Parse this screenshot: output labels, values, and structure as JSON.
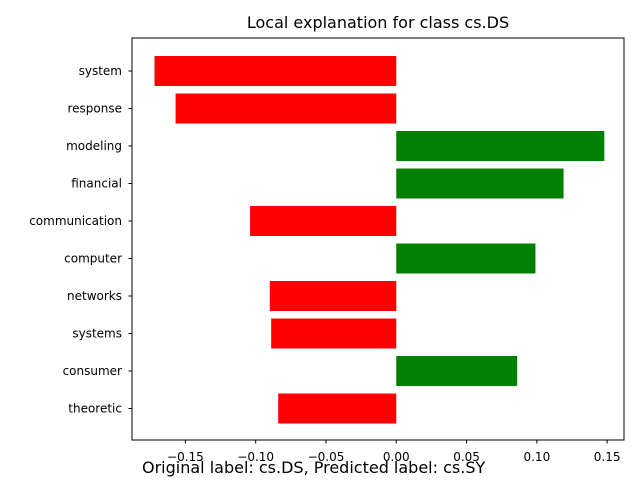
{
  "chart_data": {
    "type": "bar",
    "orientation": "horizontal",
    "title": "Local explanation for class cs.DS",
    "xlabel": "",
    "ylabel": "",
    "categories": [
      "system",
      "response",
      "modeling",
      "financial",
      "communication",
      "computer",
      "networks",
      "systems",
      "consumer",
      "theoretic"
    ],
    "values": [
      -0.172,
      -0.157,
      0.148,
      0.119,
      -0.104,
      0.099,
      -0.09,
      -0.089,
      0.086,
      -0.084
    ],
    "xlim": [
      -0.188,
      0.162
    ],
    "xticks": [
      -0.15,
      -0.1,
      -0.05,
      0.0,
      0.05,
      0.1,
      0.15
    ],
    "xtick_labels": [
      "−0.15",
      "−0.10",
      "−0.05",
      "0.00",
      "0.05",
      "0.10",
      "0.15"
    ],
    "grid": false,
    "colors": {
      "positive": "#008000",
      "negative": "#ff0000"
    }
  },
  "caption": "Original label: cs.DS, Predicted label: cs.SY"
}
